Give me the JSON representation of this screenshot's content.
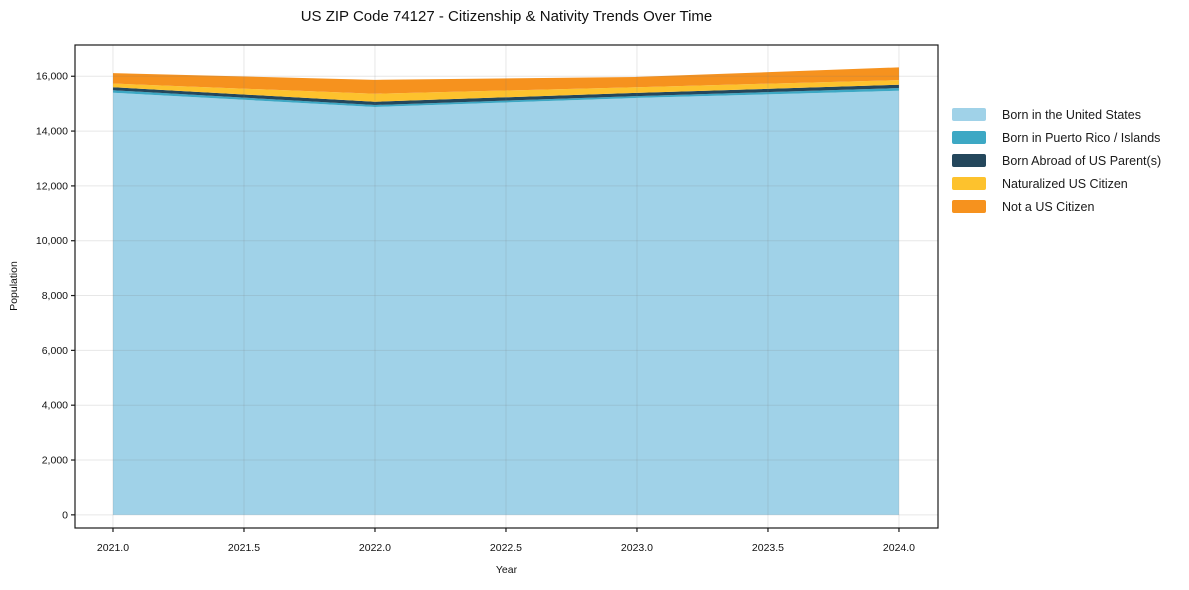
{
  "chart_data": {
    "type": "area",
    "stacked": true,
    "title": "US ZIP Code 74127 - Citizenship & Nativity Trends Over Time",
    "xlabel": "Year",
    "ylabel": "Population",
    "x": [
      2021,
      2022,
      2023,
      2024
    ],
    "series": [
      {
        "name": "Born in the United States",
        "color": "#a0d2e8",
        "values": [
          15400,
          14880,
          15210,
          15470
        ]
      },
      {
        "name": "Born in Puerto Rico / Islands",
        "color": "#3da8c4",
        "values": [
          90,
          70,
          65,
          100
        ]
      },
      {
        "name": "Born Abroad of US Parent(s)",
        "color": "#24475c",
        "values": [
          110,
          120,
          120,
          120
        ]
      },
      {
        "name": "Naturalized US Citizen",
        "color": "#fdc22d",
        "values": [
          135,
          290,
          205,
          170
        ]
      },
      {
        "name": "Not a US Citizen",
        "color": "#f6921e",
        "values": [
          380,
          510,
          375,
          465
        ]
      }
    ],
    "totals": [
      16115,
      15870,
      15975,
      16325
    ],
    "x_ticks": [
      "2021.0",
      "2021.5",
      "2022.0",
      "2022.5",
      "2023.0",
      "2023.5",
      "2024.0"
    ],
    "x_tick_values": [
      2021,
      2021.5,
      2022,
      2022.5,
      2023,
      2023.5,
      2024
    ],
    "y_ticks": [
      "0",
      "2,000",
      "4,000",
      "6,000",
      "8,000",
      "10,000",
      "12,000",
      "14,000",
      "16,000"
    ],
    "y_tick_values": [
      0,
      2000,
      4000,
      6000,
      8000,
      10000,
      12000,
      14000,
      16000
    ],
    "xlim": [
      2020.855,
      2024.149
    ],
    "ylim": [
      -480,
      17140
    ],
    "grid": true,
    "legend_position": "right"
  }
}
